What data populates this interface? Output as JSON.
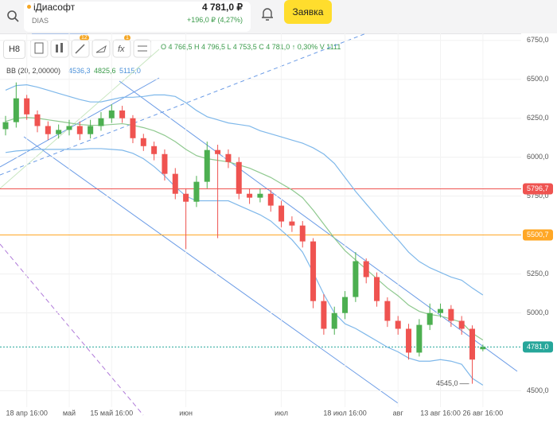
{
  "header": {
    "name": "іДиасофт",
    "ticker": "DIAS",
    "price": "4 781,0 ₽",
    "change": "+196,0 ₽ (4,27%)",
    "order_button": "Заявка"
  },
  "toolbar": {
    "interval": "H8",
    "badge_indicators": "12",
    "badge_functions": "1",
    "ohlc_legend": "O 4 766,5 H 4 796,5 L 4 753,5 C 4 781,0 ↑ 0,30% V 1111"
  },
  "chart_data": {
    "type": "candlestick",
    "categories": [
      null,
      null,
      "18 апр 16:00",
      null,
      null,
      null,
      "май",
      null,
      null,
      null,
      "15 май 16:00",
      null,
      null,
      null,
      null,
      null,
      null,
      "июн",
      null,
      null,
      null,
      null,
      null,
      null,
      null,
      null,
      "июл",
      null,
      null,
      null,
      null,
      null,
      "18 июл 16:00",
      null,
      null,
      null,
      null,
      "авг",
      null,
      null,
      null,
      "13 авг 16:00",
      null,
      null,
      null,
      "26 авг 16:00"
    ],
    "open": [
      6180,
      6225,
      6378,
      6275,
      6200,
      6148,
      6175,
      6200,
      6148,
      6200,
      6250,
      6300,
      6250,
      6122,
      6071,
      6020,
      5893,
      5765,
      5714,
      5842,
      6046,
      6020,
      5969,
      5765,
      5740,
      5765,
      5689,
      5587,
      5561,
      5459,
      5076,
      4898,
      4999,
      5102,
      5332,
      5230,
      5076,
      4949,
      4898,
      4745,
      4923,
      4999,
      5025,
      4949,
      4898,
      4766.5
    ],
    "high": [
      6265,
      6480,
      6400,
      6300,
      6230,
      6210,
      6240,
      6230,
      6240,
      6290,
      6340,
      6330,
      6270,
      6150,
      6100,
      6050,
      5930,
      5800,
      5880,
      6100,
      6080,
      6050,
      6000,
      5800,
      5800,
      5790,
      5720,
      5620,
      5590,
      5480,
      5120,
      5040,
      5140,
      5390,
      5350,
      5260,
      5100,
      4980,
      4930,
      4960,
      5060,
      5060,
      5050,
      4980,
      4920,
      4796.5
    ],
    "low": [
      6140,
      6190,
      6240,
      6160,
      6110,
      6120,
      6140,
      6110,
      6120,
      6170,
      6220,
      6220,
      6090,
      6040,
      5980,
      5850,
      5730,
      5410,
      5680,
      5800,
      5480,
      5930,
      5730,
      5700,
      5710,
      5650,
      5550,
      5520,
      5420,
      5030,
      4860,
      4860,
      4960,
      5070,
      5190,
      5040,
      4910,
      4860,
      4700,
      4720,
      4890,
      4970,
      4910,
      4860,
      4545,
      4753.5
    ],
    "close": [
      6225,
      6378,
      6275,
      6200,
      6148,
      6175,
      6200,
      6148,
      6200,
      6250,
      6300,
      6250,
      6122,
      6071,
      6020,
      5893,
      5765,
      5714,
      5842,
      6046,
      6020,
      5969,
      5765,
      5740,
      5765,
      5689,
      5587,
      5561,
      5459,
      5076,
      4898,
      4999,
      5102,
      5332,
      5230,
      5076,
      4949,
      4898,
      4745,
      4923,
      4999,
      5025,
      4949,
      4898,
      4700,
      4781.0
    ],
    "up_color": "#4caf50",
    "down_color": "#ef5350",
    "indicator": {
      "name": "BB (20, 2,00000)",
      "last_lower": "4536,3",
      "last_middle": "4825,6",
      "last_upper": "5115,0",
      "series": [
        {
          "color": "#7fb8ea",
          "values": [
            6430,
            6460,
            6465,
            6450,
            6430,
            6410,
            6390,
            6370,
            6355,
            6355,
            6370,
            6385,
            6385,
            6390,
            6400,
            6400,
            6390,
            6350,
            6300,
            6260,
            6240,
            6220,
            6210,
            6200,
            6170,
            6150,
            6130,
            6110,
            6090,
            6060,
            6020,
            5960,
            5870,
            5780,
            5700,
            5620,
            5540,
            5470,
            5390,
            5330,
            5290,
            5260,
            5230,
            5210,
            5160,
            5115.0
          ]
        },
        {
          "color": "#8fc98f",
          "values": [
            6230,
            6250,
            6255,
            6250,
            6240,
            6230,
            6220,
            6210,
            6205,
            6205,
            6210,
            6215,
            6205,
            6190,
            6170,
            6140,
            6100,
            6050,
            6010,
            5990,
            5980,
            5970,
            5950,
            5930,
            5900,
            5870,
            5830,
            5790,
            5740,
            5660,
            5570,
            5480,
            5400,
            5340,
            5280,
            5220,
            5160,
            5110,
            5050,
            5010,
            4990,
            4980,
            4960,
            4940,
            4870,
            4825.6
          ]
        },
        {
          "color": "#7fb8ea",
          "values": [
            6030,
            6040,
            6045,
            6050,
            6050,
            6050,
            6050,
            6050,
            6055,
            6055,
            6050,
            6045,
            6025,
            5990,
            5940,
            5880,
            5810,
            5750,
            5720,
            5720,
            5720,
            5720,
            5690,
            5660,
            5630,
            5590,
            5530,
            5470,
            5390,
            5260,
            5120,
            5000,
            4930,
            4900,
            4860,
            4820,
            4780,
            4750,
            4710,
            4690,
            4690,
            4700,
            4690,
            4670,
            4580,
            4536.3
          ]
        }
      ]
    },
    "levels": [
      {
        "value": 5796.7,
        "label": "5796,7",
        "color": "#ef5350"
      },
      {
        "value": 5500.7,
        "label": "5500,7",
        "color": "#ffa726"
      },
      {
        "value": 4781.0,
        "label": "4781,0",
        "color": "#26a69a"
      }
    ],
    "annotation": {
      "value": 4545,
      "label": "4545,0",
      "index": 44
    },
    "ylim": [
      4395,
      6795
    ],
    "yticks": [
      {
        "value": 6750,
        "label": "6750,0"
      },
      {
        "value": 6500,
        "label": "6500,0"
      },
      {
        "value": 6250,
        "label": "6250,0"
      },
      {
        "value": 6000,
        "label": "6000,0"
      },
      {
        "value": 5750,
        "label": "5750,0"
      },
      {
        "value": 5250,
        "label": "5250,0"
      },
      {
        "value": 5000,
        "label": "5000,0"
      },
      {
        "value": 4500,
        "label": "4500,0"
      }
    ],
    "grid": true
  }
}
